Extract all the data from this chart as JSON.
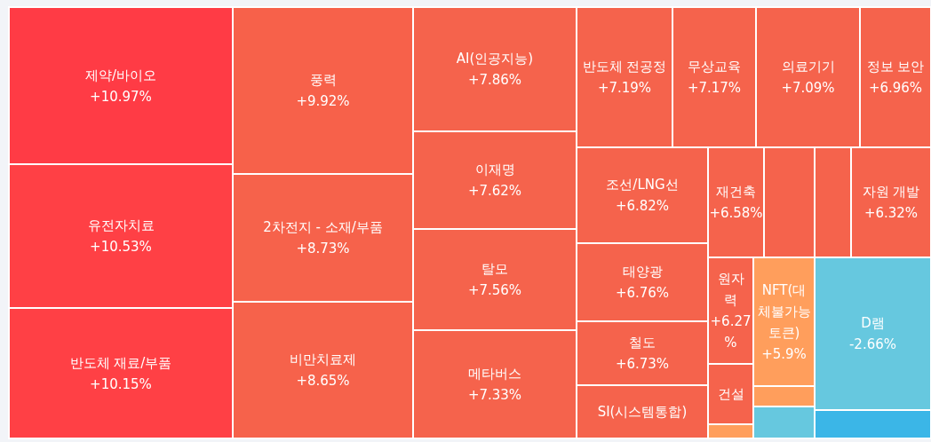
{
  "chart_data": {
    "type": "other",
    "categories": [
      "제약/바이오",
      "유전자치료",
      "반도체 재료/부품",
      "풍력",
      "2차전지 - 소재/부품",
      "비만치료제",
      "AI(인공지능)",
      "이재명",
      "탈모",
      "메타버스",
      "반도체 전공정",
      "무상교육",
      "의료기기",
      "정보 보안",
      "조선/LNG선",
      "태양광",
      "철도",
      "SI(시스템통합)",
      "재건축",
      null,
      null,
      "자원 개발",
      "원자력",
      "NFT(대체불가능토큰)",
      "건설",
      null,
      null,
      null,
      "D램",
      null
    ],
    "values": [
      10.97,
      10.53,
      10.15,
      9.92,
      8.73,
      8.65,
      7.86,
      7.62,
      7.56,
      7.33,
      7.19,
      7.17,
      7.09,
      6.96,
      6.82,
      6.76,
      6.73,
      null,
      6.58,
      null,
      null,
      6.32,
      6.27,
      5.9,
      null,
      null,
      null,
      null,
      -2.66,
      null
    ],
    "value_labels": [
      "+10.97%",
      "+10.53%",
      "+10.15%",
      "+9.92%",
      "+8.73%",
      "+8.65%",
      "+7.86%",
      "+7.62%",
      "+7.56%",
      "+7.33%",
      "+7.19%",
      "+7.17%",
      "+7.09%",
      "+6.96%",
      "+6.82%",
      "+6.76%",
      "+6.73%",
      null,
      "+6.58%",
      null,
      null,
      "+6.32%",
      "+6.27%",
      "+5.9%",
      null,
      null,
      null,
      null,
      "-2.66%",
      null
    ],
    "colors": [
      "#ff3b45",
      "#ff4045",
      "#ff4045",
      "#f7614a",
      "#f6624b",
      "#f6624b",
      "#f5634c",
      "#f5634c",
      "#f5634c",
      "#f5634c",
      "#f5634c",
      "#f5634c",
      "#f5634c",
      "#f5634c",
      "#f5634c",
      "#f5634c",
      "#f5634c",
      "#f5634c",
      "#f5634c",
      "#f5634c",
      "#f5634c",
      "#f5634c",
      "#f5634c",
      "#ff9e5c",
      "#f5634c",
      "#ff9e5c",
      "#ff9e5c",
      "#66c8df",
      "#66c8df",
      "#3bb6e7"
    ]
  }
}
